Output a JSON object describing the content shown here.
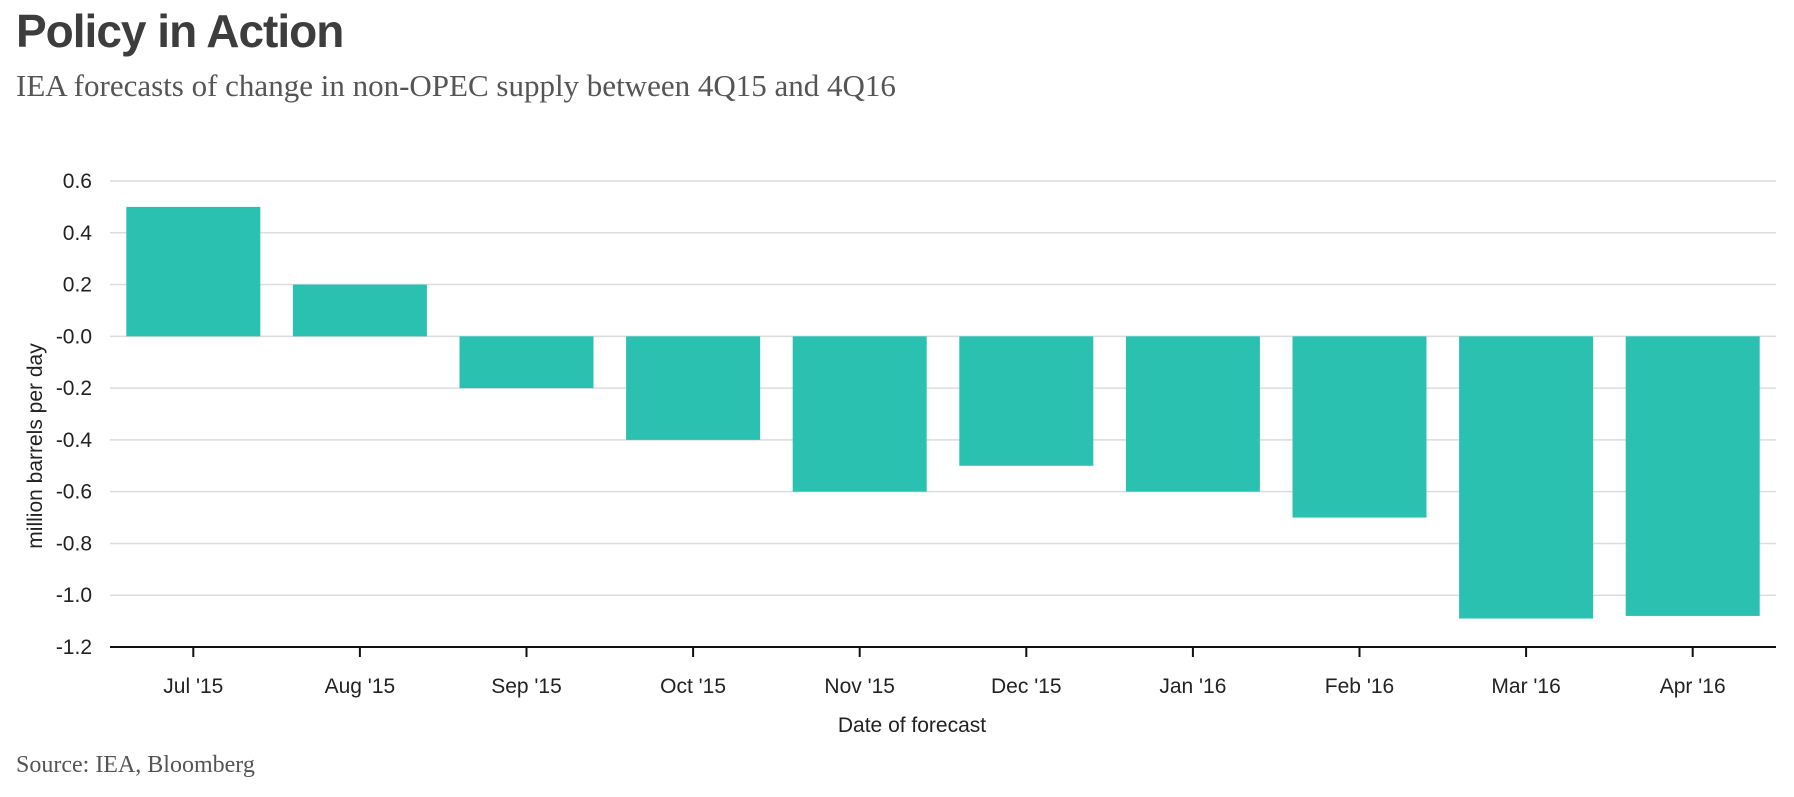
{
  "header": {
    "title": "Policy in Action",
    "subtitle": "IEA forecasts of change in non-OPEC supply between 4Q15 and 4Q16"
  },
  "footer": {
    "source": "Source: IEA, Bloomberg"
  },
  "colors": {
    "bar": "#2bc1b0",
    "grid": "#dcdcdc",
    "axis": "#111111",
    "title": "#3d3d3d",
    "text": "#555555"
  },
  "chart_data": {
    "type": "bar",
    "title": "Policy in Action",
    "subtitle": "IEA forecasts of change in non-OPEC supply between 4Q15 and 4Q16",
    "xlabel": "Date of forecast",
    "ylabel": "million barrels per day",
    "categories": [
      "Jul '15",
      "Aug '15",
      "Sep '15",
      "Oct '15",
      "Nov '15",
      "Dec '15",
      "Jan '16",
      "Feb '16",
      "Mar '16",
      "Apr '16"
    ],
    "values": [
      0.5,
      0.2,
      -0.2,
      -0.4,
      -0.6,
      -0.5,
      -0.6,
      -0.7,
      -1.09,
      -1.08
    ],
    "ylim": [
      -1.2,
      0.6
    ],
    "yticks": [
      0.6,
      0.4,
      0.2,
      0.0,
      -0.2,
      -0.4,
      -0.6,
      -0.8,
      -1.0,
      -1.2
    ],
    "ytick_labels": [
      "0.6",
      "0.4",
      "0.2",
      "-0.0",
      "-0.2",
      "-0.4",
      "-0.6",
      "-0.8",
      "-1.0",
      "-1.2"
    ],
    "grid": true,
    "legend": "none"
  }
}
